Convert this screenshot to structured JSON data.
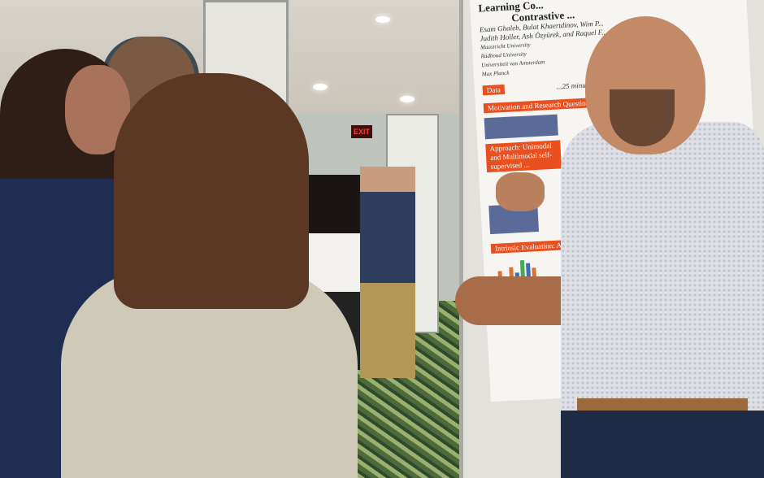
{
  "scene": {
    "exit_sign": "EXIT",
    "poster": {
      "title_line1": "Learning Co...",
      "title_line2": "Contrastive ...",
      "authors_line1": "Esam Ghaleb, Bulat Khaertdinov, Wim P...",
      "authors_line2": "Judith Holler, Aslı Özyürek, and Raquel F...",
      "affiliations": [
        "Maastricht University",
        "Radboud University",
        "Universiteit van Amsterdam",
        "Max Planck"
      ],
      "section_headers": [
        "Motivation and Research Questions",
        "Approach: Unimodal and Multimodal self-supervised ...",
        "Intrinsic Evaluation: Alignment ..."
      ],
      "data_label": "Data",
      "duration_text": "...25 minutes."
    }
  }
}
